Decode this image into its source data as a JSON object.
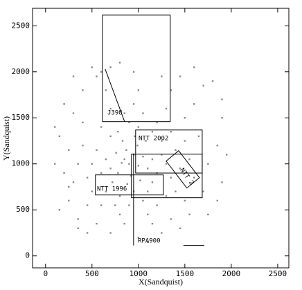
{
  "chart_data": {
    "type": "scatter",
    "xlabel": "X(Sandquist)",
    "ylabel": "Y(Sandquist)",
    "color": "#8a8a8a",
    "xlim": [
      -140,
      2620
    ],
    "ylim": [
      -130,
      2690
    ],
    "xticks": [
      0,
      500,
      1000,
      1500,
      2000,
      2500
    ],
    "yticks": [
      0,
      500,
      1000,
      1500,
      2000,
      2500
    ],
    "x": [
      900,
      850,
      1000,
      950,
      780,
      1100,
      920,
      870,
      1050,
      990,
      820,
      760,
      1150,
      1200,
      700,
      880,
      1020,
      960,
      830,
      1080,
      650,
      600,
      1250,
      1300,
      720,
      1150,
      950,
      800,
      1100,
      1000,
      900,
      780,
      1150,
      1250,
      550,
      500,
      1350,
      1400,
      650,
      700,
      1200,
      850,
      1050,
      600,
      450,
      1450,
      1300,
      900,
      1050,
      750,
      1350,
      400,
      1500,
      500,
      1200,
      950,
      700,
      1300,
      350,
      1550,
      600,
      1400,
      800,
      1100,
      300,
      1600,
      400,
      1500,
      1000,
      650,
      1350,
      250,
      1650,
      450,
      1500,
      850,
      1150,
      200,
      1750,
      300,
      1600,
      550,
      1350,
      950,
      550,
      1450,
      150,
      1850,
      250,
      1700,
      700,
      1250,
      400,
      1700,
      100,
      1900,
      350,
      1550,
      1000,
      200,
      1800,
      600,
      1600,
      150,
      1900,
      450,
      1450,
      800,
      1250,
      300,
      1850,
      250,
      1950,
      700,
      1750,
      100,
      1900,
      500,
      1100,
      350
    ],
    "values": [
      1000,
      1050,
      980,
      1100,
      900,
      950,
      870,
      1150,
      1080,
      1200,
      1010,
      1120,
      1050,
      900,
      950,
      780,
      820,
      1300,
      1250,
      1250,
      1050,
      900,
      1100,
      1000,
      800,
      800,
      700,
      650,
      700,
      1400,
      1450,
      1350,
      1350,
      1250,
      1150,
      1000,
      850,
      1150,
      700,
      1300,
      1450,
      1550,
      1550,
      1400,
      850,
      950,
      650,
      550,
      600,
      550,
      1350,
      1200,
      1250,
      700,
      550,
      1650,
      1600,
      1600,
      1000,
      1050,
      550,
      700,
      450,
      450,
      800,
      850,
      1450,
      1500,
      1800,
      1800,
      1800,
      1150,
      1300,
      550,
      600,
      350,
      350,
      900,
      1000,
      1550,
      1650,
      350,
      400,
      2000,
      1950,
      1950,
      1300,
      1200,
      600,
      700,
      250,
      250,
      1800,
      1850,
      1000,
      1500,
      400,
      450,
      200,
      1650,
      1900,
      2000,
      2050,
      500,
      800,
      250,
      300,
      2100,
      1950,
      1950,
      600,
      750,
      1100,
      2050,
      450,
      1400,
      1700,
      2050,
      150,
      300
    ],
    "fields": [
      {
        "label": "J398",
        "shape": "rect",
        "x": [
          612,
          1343
        ],
        "y": [
          1459,
          2616
        ]
      },
      {
        "label": "NTT 2002",
        "shape": "rect",
        "x": [
          970,
          1687
        ],
        "y": [
          900,
          1368
        ]
      },
      {
        "shape": "rect",
        "x": [
          925,
          1687
        ],
        "y": [
          632,
          1105
        ]
      },
      {
        "label": "NTT 1996",
        "shape": "rect",
        "x": [
          537,
          1269
        ],
        "y": [
          662,
          880
        ]
      },
      {
        "label": "NTT 2",
        "shape": "polygon",
        "x": [
          1433,
          1657,
          1522,
          1299
        ],
        "y": [
          1143,
          850,
          737,
          1030
        ]
      },
      {
        "label": "RPA900",
        "shape": "line",
        "x": [
          948,
          948
        ],
        "y": [
          113,
          1113
        ]
      },
      {
        "shape": "line",
        "x": [
          1485,
          1709
        ],
        "y": [
          113,
          113
        ]
      },
      {
        "shape": "line",
        "x": [
          642,
          851
        ],
        "y": [
          2030,
          1459
        ]
      }
    ]
  }
}
